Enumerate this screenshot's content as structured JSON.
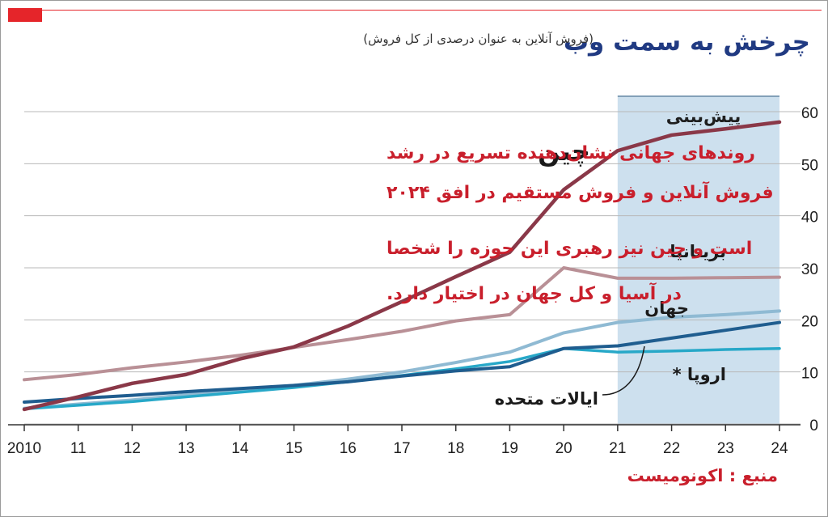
{
  "header": {
    "title": "چرخش به سمت وب",
    "subtitle": "(فروش آنلاین به عنوان درصدی از کل فروش)"
  },
  "source": "منبع : اکونومیست",
  "annotation": {
    "lines": [
      "روندهای جهانی نشان‌دهنده تسریع  در رشد",
      "فروش آنلاین و فروش مستقیم در افق ۲۰۲۴",
      "است و چین نیز رهبری این حوزه را شخصا",
      "در آسیا و کل جهان در اختیار دارد."
    ],
    "color": "#c91f2c"
  },
  "chart_data": {
    "type": "line",
    "x": [
      2010,
      2011,
      2012,
      2013,
      2014,
      2015,
      2016,
      2017,
      2018,
      2019,
      2020,
      2021,
      2022,
      2023,
      2024
    ],
    "x_tick_labels": [
      "2010",
      "11",
      "12",
      "13",
      "14",
      "15",
      "16",
      "17",
      "18",
      "19",
      "20",
      "21",
      "22",
      "23",
      "24"
    ],
    "ylim": [
      0,
      60
    ],
    "y_ticks": [
      0,
      10,
      20,
      30,
      40,
      50,
      60
    ],
    "forecast": {
      "label": "پیش‌بینی",
      "from": 2021,
      "to": 2024,
      "color": "#cde0ee"
    },
    "grid": true,
    "series": [
      {
        "name": "چین",
        "color": "#8a3848",
        "width": 4.5,
        "x": [
          2010,
          2011,
          2012,
          2013,
          2014,
          2015,
          2016,
          2017,
          2018,
          2019,
          2020,
          2021,
          2022,
          2023,
          2024
        ],
        "values": [
          2.8,
          5.2,
          7.8,
          9.5,
          12.5,
          14.8,
          18.8,
          23.5,
          28.3,
          33.0,
          45.0,
          52.5,
          55.5,
          56.7,
          58.0
        ]
      },
      {
        "name": "بریتانیا",
        "color": "#b99096",
        "width": 4,
        "x": [
          2010,
          2011,
          2012,
          2013,
          2014,
          2015,
          2016,
          2017,
          2018,
          2019,
          2020,
          2021,
          2022,
          2023,
          2024
        ],
        "values": [
          8.5,
          9.5,
          10.8,
          11.9,
          13.2,
          14.7,
          16.2,
          17.8,
          19.8,
          21.0,
          30.0,
          28.0,
          28.0,
          28.1,
          28.2
        ]
      },
      {
        "name": "جهان",
        "color": "#8fbad3",
        "width": 4,
        "x": [
          2010,
          2011,
          2012,
          2013,
          2014,
          2015,
          2016,
          2017,
          2018,
          2019,
          2020,
          2021,
          2022,
          2023,
          2024
        ],
        "values": [
          3.0,
          3.8,
          4.6,
          5.6,
          6.5,
          7.4,
          8.6,
          10.0,
          11.8,
          13.8,
          17.5,
          19.5,
          20.5,
          21.0,
          21.7
        ]
      },
      {
        "name": "ایالات متحده",
        "color": "#1f5d8f",
        "width": 4,
        "x": [
          2010,
          2011,
          2012,
          2013,
          2014,
          2015,
          2016,
          2017,
          2018,
          2019,
          2020,
          2021,
          2022,
          2023,
          2024
        ],
        "values": [
          4.2,
          4.9,
          5.5,
          6.2,
          6.8,
          7.4,
          8.1,
          9.2,
          10.2,
          11.0,
          14.5,
          15.0,
          16.5,
          18.0,
          19.5
        ]
      },
      {
        "name": "اروپا",
        "note": "*",
        "color": "#27a8c8",
        "width": 3.5,
        "x": [
          2010,
          2011,
          2012,
          2013,
          2014,
          2015,
          2016,
          2017,
          2018,
          2019,
          2020,
          2021,
          2022,
          2023,
          2024
        ],
        "values": [
          2.9,
          3.6,
          4.3,
          5.2,
          6.1,
          7.0,
          8.1,
          9.3,
          10.6,
          12.0,
          14.5,
          13.8,
          14.0,
          14.3,
          14.5
        ]
      }
    ]
  }
}
